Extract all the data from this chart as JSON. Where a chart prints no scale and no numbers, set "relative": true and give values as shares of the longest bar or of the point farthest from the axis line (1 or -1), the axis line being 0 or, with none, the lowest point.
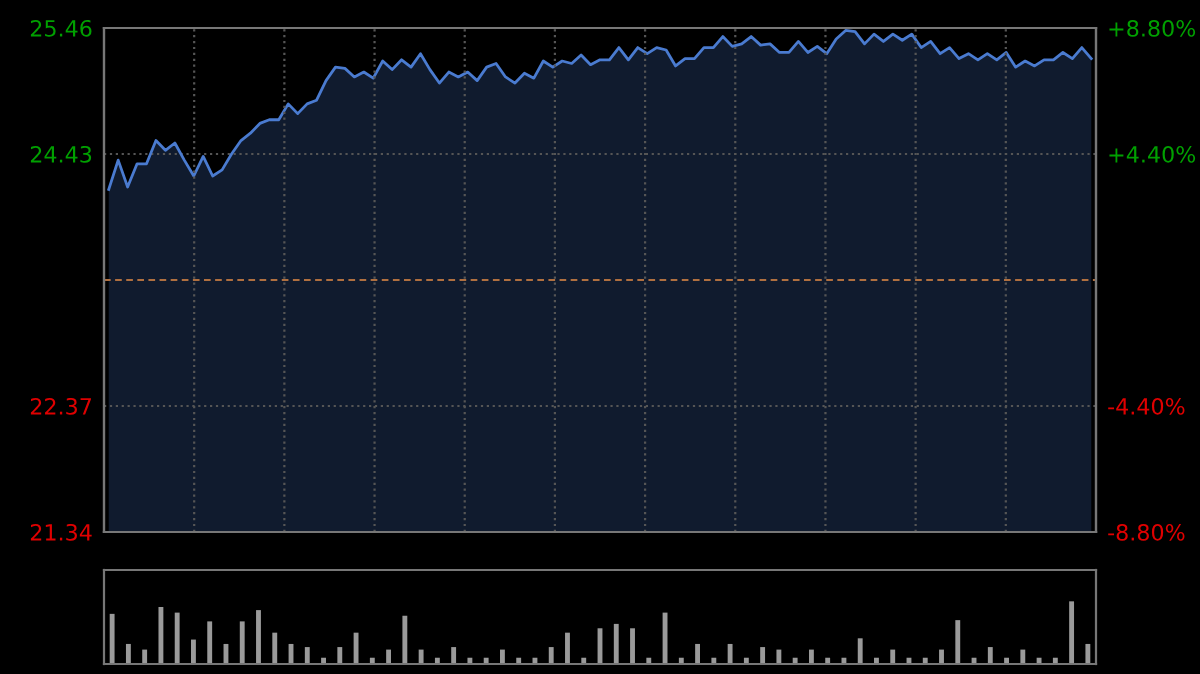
{
  "chart_data": [
    {
      "type": "area",
      "categories": [
        null,
        null,
        null,
        null,
        null,
        null,
        null,
        null,
        null,
        null,
        null,
        null,
        null,
        null,
        null,
        null,
        null,
        null,
        null,
        null,
        null,
        null,
        null,
        null,
        null,
        null,
        null,
        null,
        null,
        null,
        null,
        null,
        null,
        null,
        null,
        null,
        null,
        null,
        null,
        null,
        null,
        null,
        null,
        null,
        null,
        null,
        null,
        null,
        null,
        null,
        null,
        null,
        null,
        null,
        null,
        null,
        null,
        null,
        null,
        null,
        null,
        null,
        null,
        null,
        null,
        null,
        null,
        null,
        null,
        null,
        null,
        null,
        null,
        null,
        null,
        null,
        null,
        null,
        null,
        null,
        null,
        null,
        null,
        null,
        null,
        null,
        null,
        null,
        null,
        null,
        null,
        null,
        null,
        null,
        null,
        null,
        null,
        null,
        null,
        null,
        null,
        null,
        null,
        null,
        null
      ],
      "ylim": [
        21.34,
        25.46
      ],
      "yticks": [
        21.34,
        22.37,
        24.43,
        25.46
      ],
      "y2lim": [
        -8.8,
        8.8
      ],
      "y2ticks": [
        {
          "value": -8.8,
          "label": "-8.80%"
        },
        {
          "value": -4.4,
          "label": "-4.40%"
        },
        {
          "value": 4.4,
          "label": "+4.40%"
        },
        {
          "value": 8.8,
          "label": "+8.80%"
        }
      ],
      "grid": true,
      "ref_lines": [
        {
          "axis": "y",
          "value": 23.4,
          "color": "#b07040",
          "line_style": "dashed"
        }
      ],
      "series": [
        {
          "color": "#4a7bd0",
          "values": [
            24.14,
            24.38,
            24.16,
            24.35,
            24.35,
            24.54,
            24.46,
            24.52,
            24.38,
            24.25,
            24.41,
            24.25,
            24.3,
            24.43,
            24.54,
            24.6,
            24.68,
            24.71,
            24.71,
            24.84,
            24.76,
            24.84,
            24.87,
            25.03,
            25.14,
            25.13,
            25.06,
            25.1,
            25.05,
            25.19,
            25.12,
            25.2,
            25.14,
            25.25,
            25.12,
            25.01,
            25.1,
            25.06,
            25.1,
            25.03,
            25.14,
            25.17,
            25.06,
            25.01,
            25.09,
            25.05,
            25.19,
            25.14,
            25.19,
            25.17,
            25.24,
            25.16,
            25.2,
            25.2,
            25.3,
            25.2,
            25.3,
            25.25,
            25.3,
            25.28,
            25.15,
            25.21,
            25.21,
            25.3,
            25.3,
            25.39,
            25.31,
            25.33,
            25.39,
            25.32,
            25.33,
            25.26,
            25.26,
            25.35,
            25.26,
            25.31,
            25.25,
            25.37,
            25.44,
            25.43,
            25.33,
            25.41,
            25.35,
            25.41,
            25.36,
            25.41,
            25.3,
            25.35,
            25.25,
            25.3,
            25.21,
            25.25,
            25.2,
            25.25,
            25.2,
            25.26,
            25.14,
            25.19,
            25.15,
            25.2,
            25.2,
            25.26,
            25.21,
            25.3,
            25.21
          ]
        }
      ]
    },
    {
      "type": "bar",
      "relative": true,
      "categories": [
        null,
        null,
        null,
        null,
        null,
        null,
        null,
        null,
        null,
        null,
        null,
        null,
        null,
        null,
        null,
        null,
        null,
        null,
        null,
        null,
        null,
        null,
        null,
        null,
        null,
        null,
        null,
        null,
        null,
        null,
        null,
        null,
        null,
        null,
        null,
        null,
        null,
        null,
        null,
        null,
        null,
        null,
        null,
        null,
        null,
        null,
        null,
        null,
        null,
        null,
        null,
        null,
        null,
        null,
        null,
        null,
        null,
        null,
        null,
        null,
        null
      ],
      "series": [
        {
          "color": "#9a9a9a",
          "values": [
            0.8,
            0.32,
            0.23,
            0.91,
            0.82,
            0.39,
            0.68,
            0.32,
            0.68,
            0.86,
            0.5,
            0.32,
            0.27,
            0.1,
            0.27,
            0.5,
            0.1,
            0.23,
            0.77,
            0.23,
            0.1,
            0.27,
            0.1,
            0.1,
            0.23,
            0.1,
            0.1,
            0.27,
            0.5,
            0.1,
            0.57,
            0.64,
            0.57,
            0.1,
            0.82,
            0.1,
            0.32,
            0.1,
            0.32,
            0.1,
            0.27,
            0.23,
            0.1,
            0.23,
            0.1,
            0.1,
            0.41,
            0.1,
            0.23,
            0.1,
            0.1,
            0.23,
            0.7,
            0.1,
            0.27,
            0.1,
            0.23,
            0.1,
            0.1,
            1,
            0.32
          ]
        }
      ]
    }
  ]
}
